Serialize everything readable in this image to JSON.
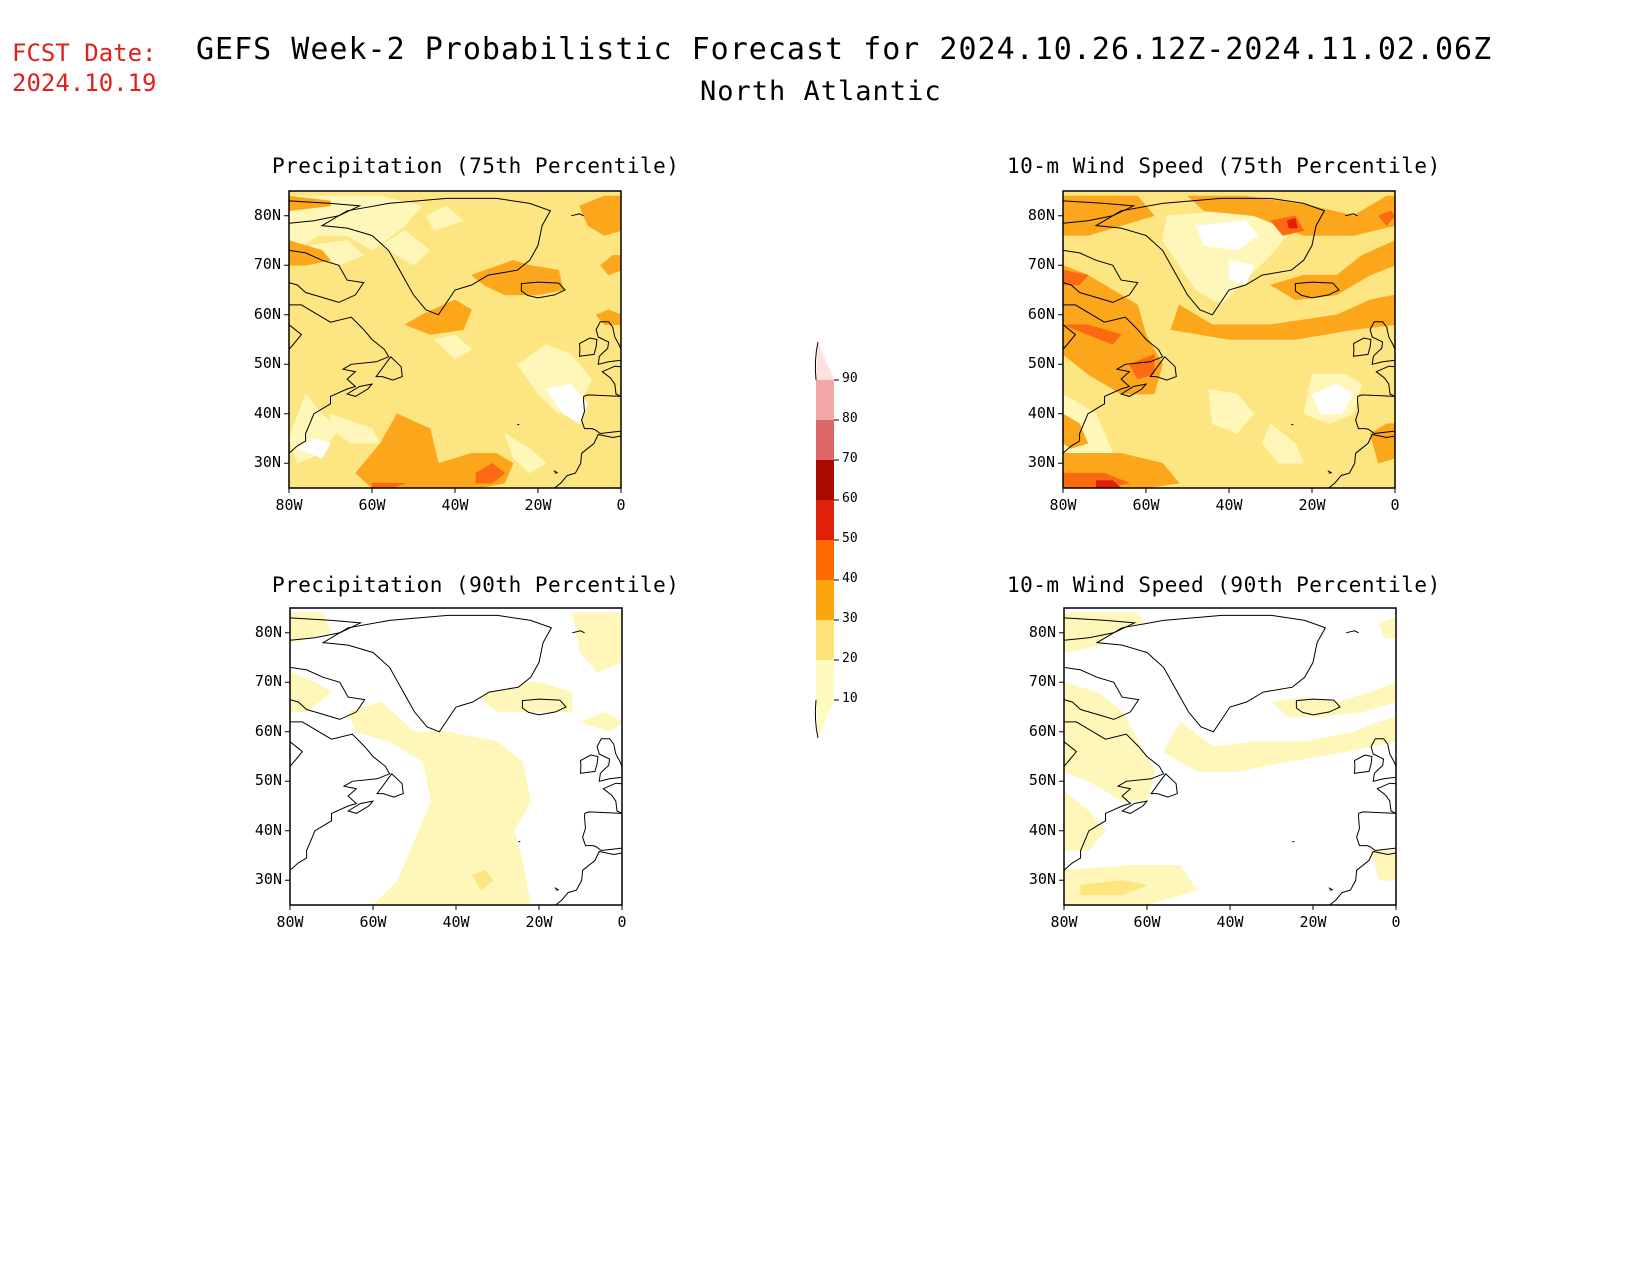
{
  "header": {
    "fcst_label": "FCST Date:",
    "fcst_date": "2024.10.19",
    "title": "GEFS Week-2 Probabilistic Forecast for 2024.10.26.12Z-2024.11.02.06Z",
    "region": "North Atlantic"
  },
  "panels": [
    {
      "title": "Precipitation (75th Percentile)",
      "field": "precip75"
    },
    {
      "title": "10-m Wind Speed (75th Percentile)",
      "field": "wind75"
    },
    {
      "title": "Precipitation (90th Percentile)",
      "field": "precip90"
    },
    {
      "title": "10-m Wind Speed (90th Percentile)",
      "field": "wind90"
    }
  ],
  "axes": {
    "lat_ticks": [
      "80N",
      "70N",
      "60N",
      "50N",
      "40N",
      "30N"
    ],
    "lon_ticks": [
      "80W",
      "60W",
      "40W",
      "20W",
      "0"
    ]
  },
  "colorbar": {
    "levels": [
      "10",
      "20",
      "30",
      "40",
      "50",
      "60",
      "70",
      "80",
      "90"
    ],
    "colors": [
      "#fffbc0",
      "#fde27a",
      "#fca50c",
      "#fd6a00",
      "#e02008",
      "#a80a00",
      "#dd6666",
      "#f3a8a8",
      "#fde0e0"
    ]
  },
  "palette": {
    "ocean": "#ffffff",
    "level10": "#fff7b9",
    "level20": "#fde581",
    "level30": "#fca61c",
    "level40": "#fb6a10",
    "level50": "#e02008",
    "coast": "#000000",
    "fcst_color": "#e0201c"
  }
}
